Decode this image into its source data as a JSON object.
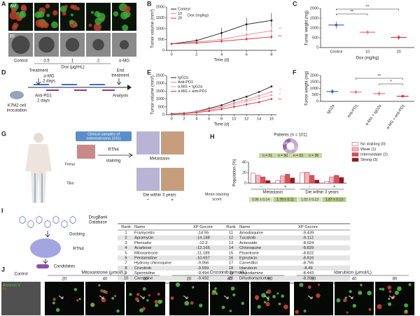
{
  "panel_labels": [
    "A",
    "B",
    "C",
    "D",
    "E",
    "F",
    "G",
    "H",
    "I",
    "J"
  ],
  "panel_a": {
    "row_labels": [
      "AM",
      "BF"
    ],
    "columns": [
      "Control",
      "0.5",
      "1",
      "2",
      "α-MG"
    ],
    "axis_label": "Dox (μg/mL)"
  },
  "panel_d": {
    "treatment": "Treatment",
    "drug": "α-MG",
    "interval_1": "2 days",
    "antibody": "Anti-PD1",
    "interval_2": "2 days",
    "end": [
      "End",
      "treatment"
    ],
    "cells": [
      "K7M2 cell",
      "inoculation"
    ],
    "analysis": "Analysis"
  },
  "panel_g": {
    "samples": [
      "Clinical samples of",
      "osteosarcoma (101)"
    ],
    "stain": [
      "RTN4",
      "staining"
    ],
    "femur": "Femur",
    "tibia": "Tibia",
    "metastasis": "Metastasis",
    "death": "Die within 3 years",
    "signs": [
      "−",
      "+"
    ]
  },
  "panel_i": {
    "database": [
      "DrugBank",
      "Database"
    ],
    "docking": "Docking",
    "target": "RTN4",
    "result": "Candidates",
    "table": {
      "header": [
        "Rank",
        "Name",
        "XP Gscore",
        "Rank",
        "Name",
        "XP Gscore"
      ],
      "rows": [
        [
          1,
          "Framycetin",
          -14.55,
          11,
          "Amodiaquine",
          -9.439
        ],
        [
          2,
          "Apramycin",
          -14.188,
          12,
          "Tucatinib",
          -9.112
        ],
        [
          3,
          "Plerixafor",
          -12.2,
          13,
          "Acteoside",
          -8.924
        ],
        [
          4,
          "Acarbose",
          -12.165,
          14,
          "Chloroquine",
          -8.829
        ],
        [
          5,
          "Mitoxantrone",
          -11.189,
          15,
          "Pixantrone",
          -8.822
        ],
        [
          6,
          "Pentamidine",
          -10.657,
          16,
          "Epirubicin",
          -8.816
        ],
        [
          7,
          "Hydroxy chloroquine",
          -9.956,
          17,
          "Carvedilol",
          -8.765
        ],
        [
          8,
          "Crizotinib",
          -9.559,
          18,
          "Idarubicin",
          -8.49
        ],
        [
          9,
          "Spermidine",
          -9.494,
          19,
          "Amsodamine",
          -8.443
        ],
        [
          10,
          "Carnosine",
          -9.492,
          20,
          "Dihydromyricetin",
          -8.284
        ]
      ]
    }
  },
  "panel_j": {
    "control": "Control",
    "groups": [
      {
        "name": "Mitoxantrone (μmol/L)",
        "doses": [
          20,
          40,
          80
        ]
      },
      {
        "name": "Crizotinib (μmol/L)",
        "doses": [
          20,
          40,
          80
        ]
      },
      {
        "name": "Idarubicin (μmol/L)",
        "doses": [
          20,
          40,
          80
        ]
      }
    ],
    "stains": [
      "Annexin V",
      "PI"
    ]
  },
  "chart_data": [
    {
      "type": "line",
      "x": [
        0,
        2,
        4,
        6,
        8
      ],
      "xlim": [
        -0.4,
        8.4
      ],
      "xticks": [
        0,
        2,
        4,
        6,
        8
      ],
      "ylim": [
        0,
        2000
      ],
      "yticks": [
        0,
        500,
        1000,
        1500,
        2000
      ],
      "xlabel": "Time (d)",
      "ylabel": "Tumor volume (mm³)",
      "legend_title": "Dox (mg/kg)",
      "series": [
        {
          "name": "Control",
          "color": "#222222",
          "values": [
            300,
            450,
            800,
            1200,
            1380
          ],
          "errors": [
            20,
            80,
            250,
            300,
            350
          ]
        },
        {
          "name": "10",
          "color": "#e88a9a",
          "values": [
            300,
            380,
            500,
            720,
            900
          ],
          "errors": [
            20,
            50,
            100,
            150,
            200
          ]
        },
        {
          "name": "20",
          "color": "#d8343c",
          "values": [
            300,
            340,
            420,
            520,
            620
          ],
          "errors": [
            20,
            40,
            60,
            80,
            100
          ]
        }
      ],
      "annotations": [
        "**",
        "**"
      ]
    },
    {
      "type": "dot",
      "categories": [
        "Control",
        "10",
        "20"
      ],
      "values": [
        1150,
        780,
        520
      ],
      "errors": [
        180,
        120,
        130
      ],
      "colors": [
        "#3a5ca8",
        "#e37a8b",
        "#d8343c"
      ],
      "ylim": [
        0,
        2000
      ],
      "yticks": [
        0,
        500,
        1000,
        1500,
        2000
      ],
      "ylabel": "Tumor weight (mg)",
      "xlabel": "Dox (mg/kg)",
      "annotations": [
        "**",
        "**"
      ]
    },
    {
      "type": "line",
      "x": [
        0,
        2,
        4,
        6,
        8,
        10,
        12,
        14,
        16
      ],
      "xlim": [
        -0.8,
        16.8
      ],
      "xticks": [
        0,
        2,
        4,
        6,
        8,
        10,
        12,
        14,
        16
      ],
      "ylim": [
        0,
        2500
      ],
      "yticks": [
        0,
        500,
        1000,
        1500,
        2000,
        2500
      ],
      "xlabel": "Time (d)",
      "ylabel": "Tumor volume (mm³)",
      "series": [
        {
          "name": "IgG2a",
          "color": "#222222",
          "values": [
            50,
            100,
            200,
            400,
            600,
            900,
            1150,
            1450,
            1800
          ]
        },
        {
          "name": "Anti-PD1",
          "color": "#e88a9a",
          "values": [
            50,
            90,
            180,
            350,
            500,
            750,
            950,
            1200,
            1450
          ]
        },
        {
          "name": "α-MG + IgG2a",
          "color": "#f0a0a0",
          "values": [
            50,
            80,
            160,
            300,
            450,
            650,
            850,
            1050,
            1250
          ]
        },
        {
          "name": "α-MG + anti-PD1",
          "color": "#d8343c",
          "values": [
            50,
            70,
            130,
            230,
            350,
            500,
            650,
            800,
            1000
          ]
        }
      ],
      "annotations": [
        "*",
        "*",
        "**"
      ]
    },
    {
      "type": "dot",
      "categories": [
        "IgG2a",
        "Anti-PD1",
        "α-MG + IgG2a",
        "α-MG + anti-PD1"
      ],
      "values": [
        760,
        720,
        600,
        400
      ],
      "errors": [
        200,
        180,
        200,
        100
      ],
      "colors": [
        "#3a5ca8",
        "#e37a8b",
        "#e37a8b",
        "#d8343c"
      ],
      "ylim": [
        0,
        2000
      ],
      "yticks": [
        0,
        500,
        1000,
        1500,
        2000
      ],
      "ylabel": "Tumor weight (mg)",
      "annotations": [
        "**",
        "*"
      ]
    },
    {
      "type": "bar",
      "categories": [
        "−",
        "+",
        "−",
        "+"
      ],
      "group_labels": [
        "Metastasis",
        "Die within 3 years"
      ],
      "ylim": [
        0,
        40
      ],
      "yticks": [
        0,
        20,
        40
      ],
      "ylabel": "Population (%)",
      "edge_color": "#b8323c",
      "series": [
        {
          "name": "No staining (0)",
          "color": "#ffffff",
          "values": [
            19,
            5,
            20,
            3
          ]
        },
        {
          "name": "Weak (1)",
          "color": "#f2b8c0",
          "values": [
            15,
            14,
            21,
            12
          ]
        },
        {
          "name": "Intermediate (2)",
          "color": "#d9505c",
          "values": [
            12,
            17,
            15,
            15
          ]
        },
        {
          "name": "Strong (3)",
          "color": "#8b1a22",
          "values": [
            5,
            10,
            6,
            11
          ]
        }
      ],
      "pie_title": "Patients (n = 101)",
      "pie_values": [
        67,
        34
      ],
      "pie_colors": [
        "#c9a8d0",
        "#8f6aa8"
      ],
      "n_labels": [
        "n = 51",
        "n = 50",
        "n = 63",
        "n = 38"
      ],
      "score_label": [
        "Mean staining",
        "score"
      ],
      "score_labels": [
        "0.96 ± 0.14",
        "1.78 ± 0.11",
        "1.02 ± 0.13",
        "1.87 ± 0.13"
      ]
    }
  ]
}
